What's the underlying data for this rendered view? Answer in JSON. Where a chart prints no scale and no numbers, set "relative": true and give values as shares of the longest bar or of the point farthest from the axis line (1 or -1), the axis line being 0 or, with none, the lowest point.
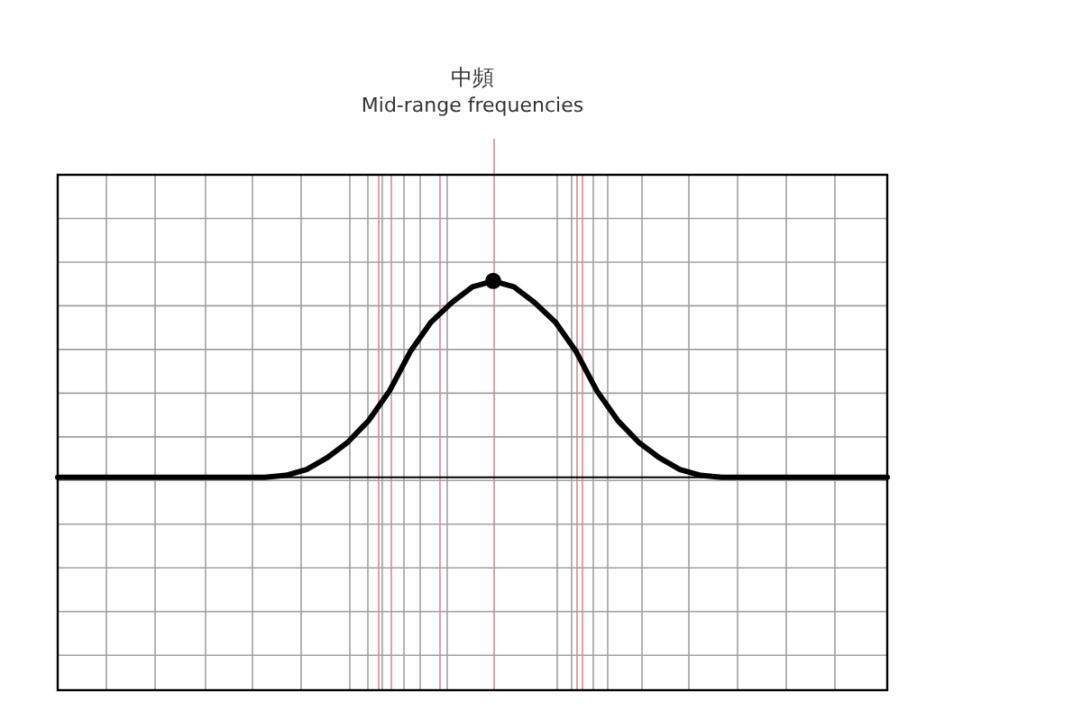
{
  "chart_data": {
    "type": "line",
    "title": "中頻",
    "subtitle": "Mid-range frequencies",
    "relative": true,
    "grid": true,
    "categories": [
      null,
      null,
      null,
      null,
      null,
      null,
      null,
      null,
      null,
      null,
      null,
      null,
      null,
      null,
      null,
      null,
      null,
      null,
      null,
      null,
      null,
      null,
      null,
      null,
      null,
      null,
      null,
      null,
      null,
      null,
      null,
      null,
      null,
      null,
      null,
      null,
      null,
      null,
      null,
      null,
      null
    ],
    "series": [
      {
        "color": "#000000",
        "values": [
          0,
          0,
          0,
          0,
          0,
          0,
          0,
          0,
          0,
          0,
          0,
          0.01,
          0.04,
          0.1,
          0.18,
          0.29,
          0.44,
          0.64,
          0.79,
          0.89,
          0.97,
          1,
          0.97,
          0.89,
          0.79,
          0.64,
          0.44,
          0.29,
          0.18,
          0.1,
          0.04,
          0.01,
          0,
          0,
          0,
          0,
          0,
          0,
          0,
          0,
          0
        ]
      }
    ]
  }
}
